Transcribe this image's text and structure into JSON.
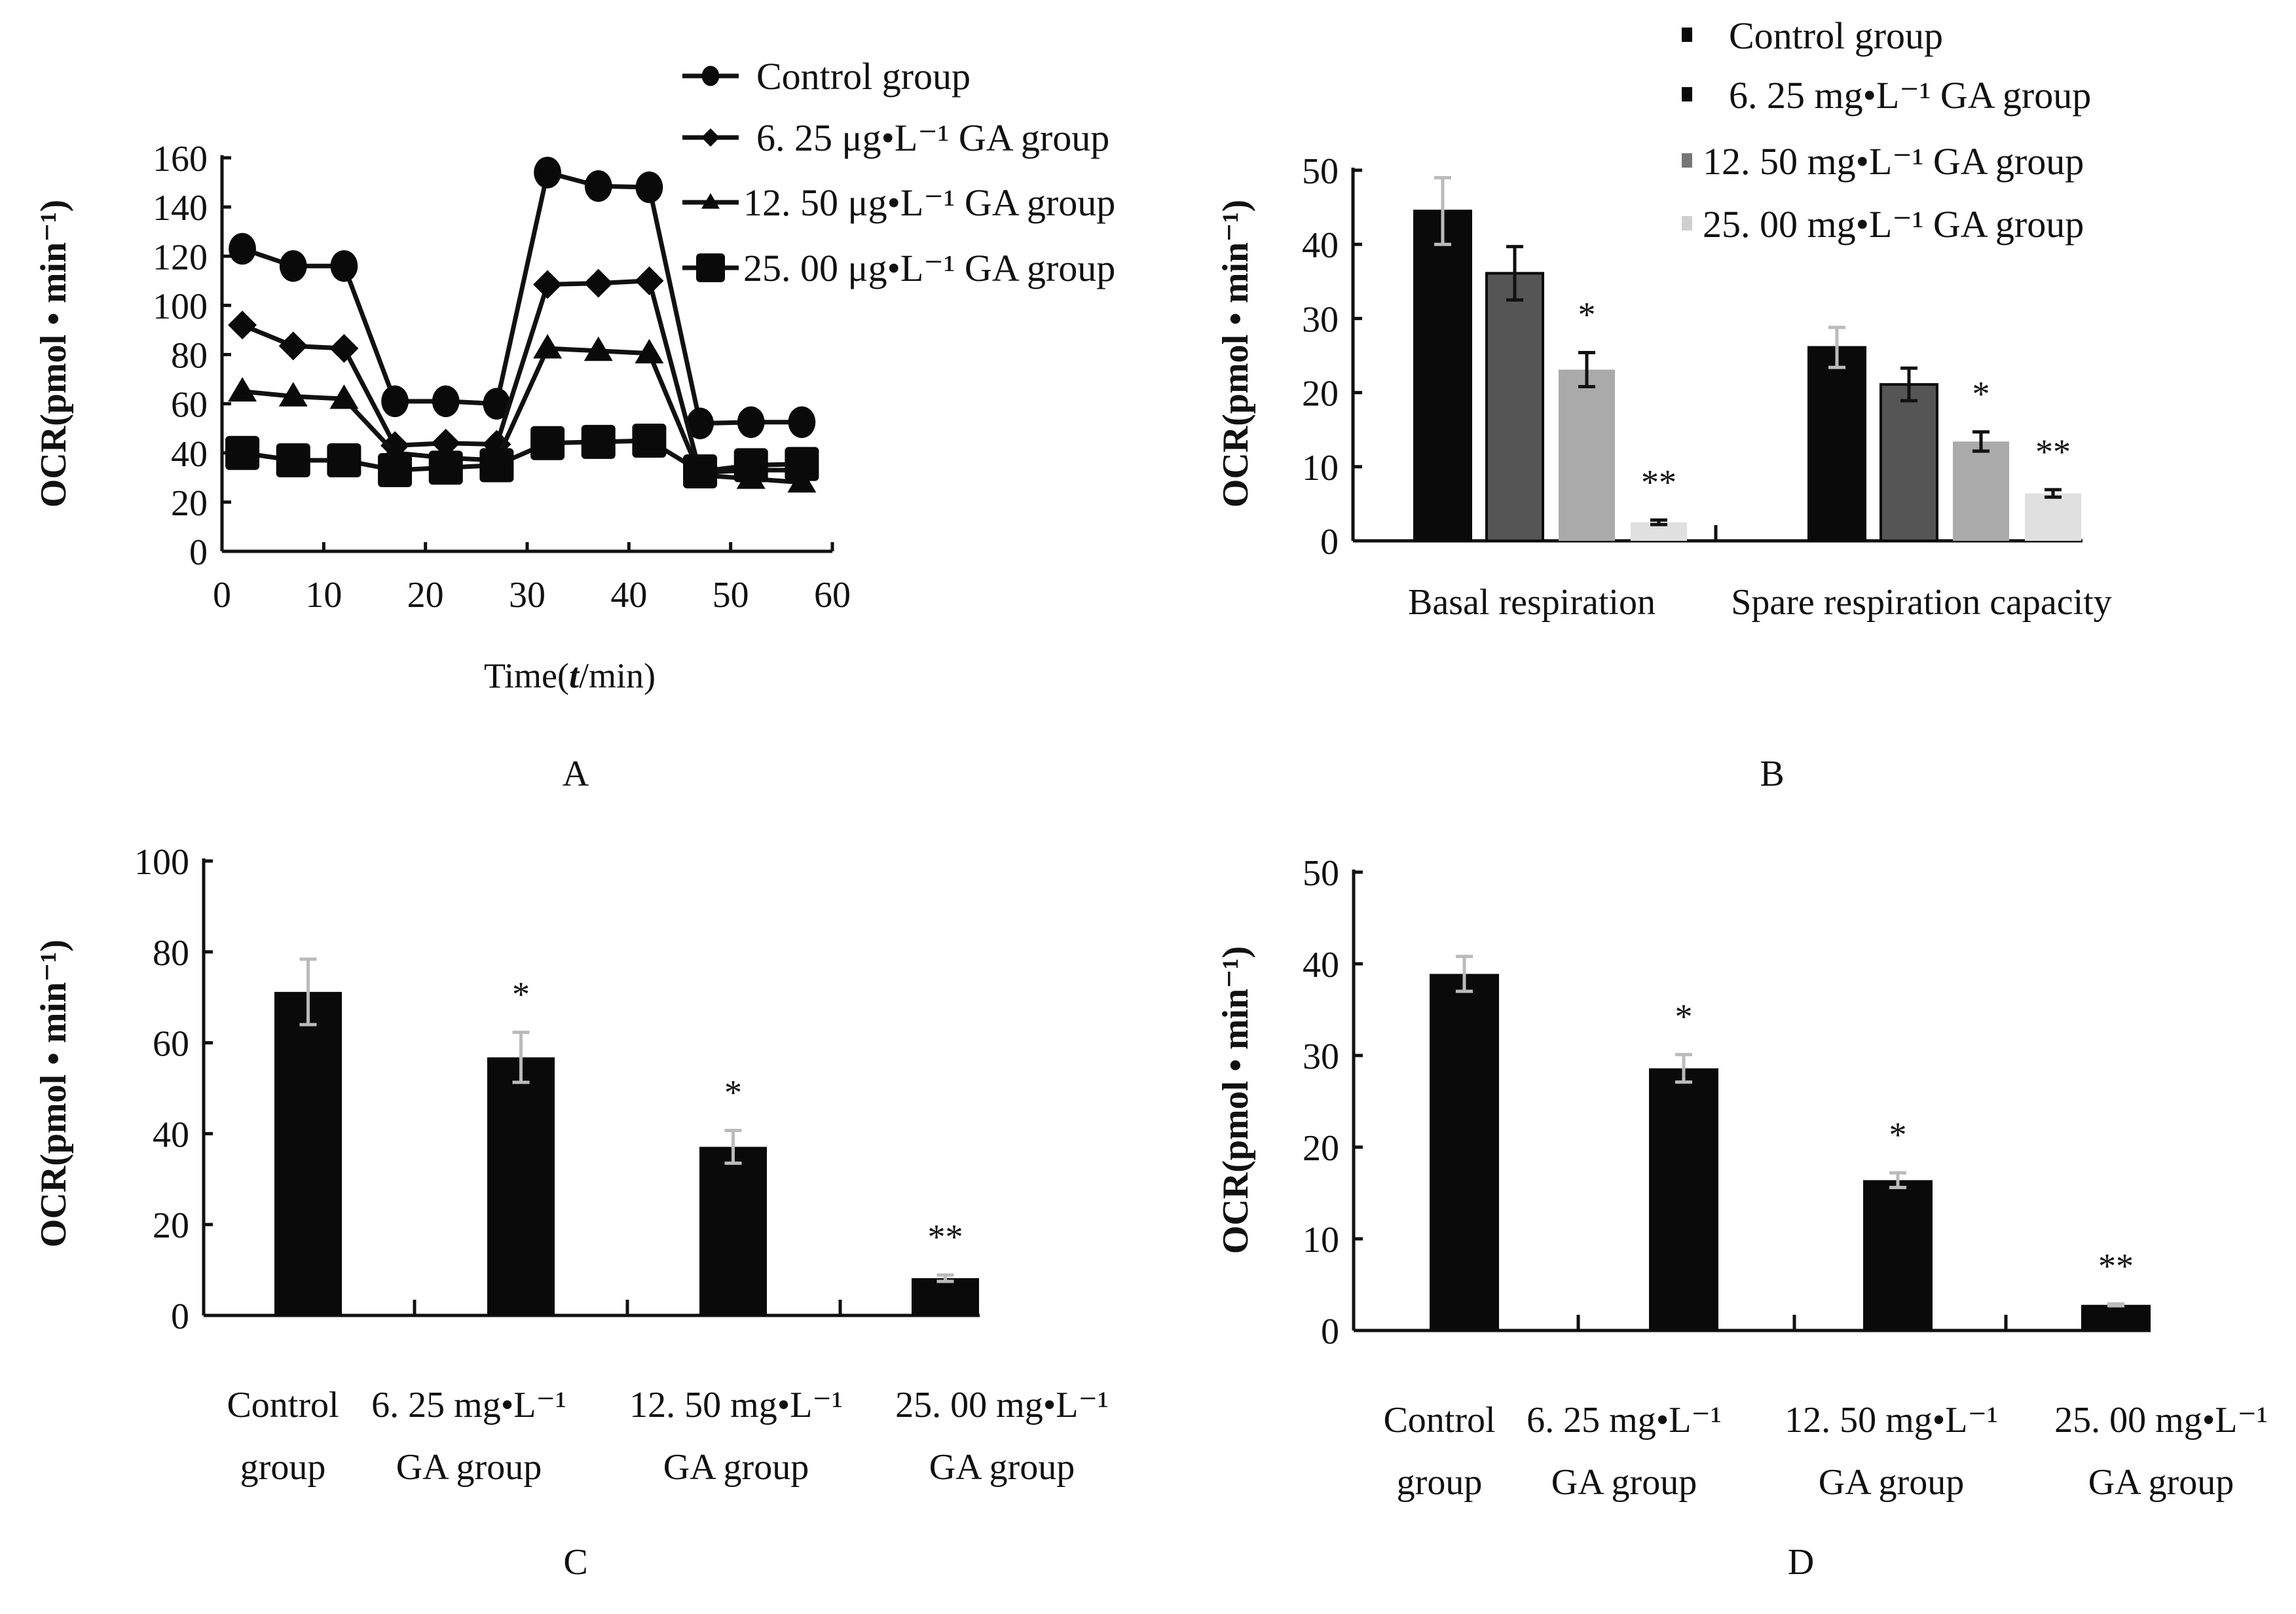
{
  "figure": {
    "panel_letters": [
      "A",
      "B",
      "C",
      "D"
    ]
  },
  "chart_data": [
    {
      "panel": "A",
      "type": "line",
      "title": "",
      "xlabel": "Time(t/min)",
      "xlabel_parts": {
        "prefix": "Time(",
        "italic": "t",
        "suffix": "/min)"
      },
      "ylabel": "OCR(pmol • min⁻¹)",
      "xlim": [
        0,
        60
      ],
      "ylim": [
        0,
        160
      ],
      "xticks": [
        0,
        10,
        20,
        30,
        40,
        50,
        60
      ],
      "yticks": [
        0,
        20,
        40,
        60,
        80,
        100,
        120,
        140,
        160
      ],
      "grid": false,
      "legend_position": "top-right",
      "x": [
        2,
        7,
        12,
        17,
        22,
        27,
        32,
        37,
        42,
        47,
        52,
        57
      ],
      "series": [
        {
          "name": "Control group",
          "marker": "circle",
          "values": [
            123,
            116,
            116,
            61,
            61,
            60,
            154,
            148.5,
            148,
            52,
            52.5,
            52.5
          ]
        },
        {
          "name": "6. 25 μg•L⁻¹ GA group",
          "marker": "diamond",
          "values": [
            92,
            83.5,
            82.5,
            43,
            44,
            43.5,
            108.5,
            109,
            110,
            32,
            33,
            33
          ]
        },
        {
          "name": "12. 50 μg•L⁻¹ GA group",
          "marker": "triangle",
          "values": [
            65,
            63,
            62,
            40,
            38,
            37,
            82.5,
            81.5,
            80.5,
            31,
            29.5,
            28
          ]
        },
        {
          "name": "25. 00 μg•L⁻¹ GA group",
          "marker": "square",
          "values": [
            40,
            37,
            37,
            33,
            34,
            35,
            44,
            44.5,
            45,
            32.5,
            35,
            35.5
          ]
        }
      ]
    },
    {
      "panel": "B",
      "type": "bar",
      "title": "",
      "xlabel": "",
      "ylabel": "OCR(pmol • min⁻¹)",
      "ylim": [
        0,
        50
      ],
      "yticks": [
        0,
        10,
        20,
        30,
        40,
        50
      ],
      "grid": false,
      "legend_position": "top-right",
      "categories": [
        "Basal respiration",
        "Spare respiration capacity"
      ],
      "series": [
        {
          "name": "Control group",
          "color": "#0a0a0a",
          "values": [
            44.5,
            26.1
          ],
          "errors": [
            4.5,
            2.7
          ],
          "significance": [
            "",
            ""
          ]
        },
        {
          "name": "6. 25 mg•L⁻¹  GA group",
          "color": "#555555",
          "values": [
            36.1,
            21.1
          ],
          "errors": [
            3.6,
            2.2
          ],
          "significance": [
            "",
            ""
          ]
        },
        {
          "name": "12. 50 mg•L⁻¹  GA group",
          "color": "#aaaaaa",
          "values": [
            23.1,
            13.4
          ],
          "errors": [
            2.3,
            1.3
          ],
          "significance": [
            "*",
            "*"
          ]
        },
        {
          "name": "25. 00 mg•L⁻¹  GA group",
          "color": "#e0e0e0",
          "values": [
            2.5,
            6.4
          ],
          "errors": [
            0.3,
            0.5
          ],
          "significance": [
            "**",
            "**"
          ]
        }
      ]
    },
    {
      "panel": "C",
      "type": "bar",
      "title": "",
      "xlabel": "",
      "ylabel": "OCR(pmol • min⁻¹)",
      "ylim": [
        0,
        100
      ],
      "yticks": [
        0,
        20,
        40,
        60,
        80,
        100
      ],
      "grid": false,
      "categories": [
        [
          "Control",
          "group"
        ],
        [
          "6. 25 mg•L⁻¹",
          "GA group"
        ],
        [
          "12. 50 mg•L⁻¹",
          "GA group"
        ],
        [
          "25. 00 mg•L⁻¹",
          "GA group"
        ]
      ],
      "color": "#0a0a0a",
      "values": [
        71.2,
        56.8,
        37.1,
        8.2
      ],
      "errors": [
        7.2,
        5.5,
        3.6,
        0.7
      ],
      "significance": [
        "",
        "*",
        "*",
        "**"
      ]
    },
    {
      "panel": "D",
      "type": "bar",
      "title": "",
      "xlabel": "",
      "ylabel": "OCR(pmol • min⁻¹)",
      "ylim": [
        0,
        50
      ],
      "yticks": [
        0,
        10,
        20,
        30,
        40,
        50
      ],
      "grid": false,
      "categories": [
        [
          "Control",
          "group"
        ],
        [
          "6. 25 mg•L⁻¹",
          "GA group"
        ],
        [
          "12. 50 mg•L⁻¹",
          "GA group"
        ],
        [
          "25. 00 mg•L⁻¹",
          "GA group"
        ]
      ],
      "color": "#0a0a0a",
      "values": [
        38.9,
        28.6,
        16.4,
        2.8
      ],
      "errors": [
        1.9,
        1.5,
        0.8,
        0.1
      ],
      "significance": [
        "",
        "*",
        "*",
        "**"
      ]
    }
  ]
}
